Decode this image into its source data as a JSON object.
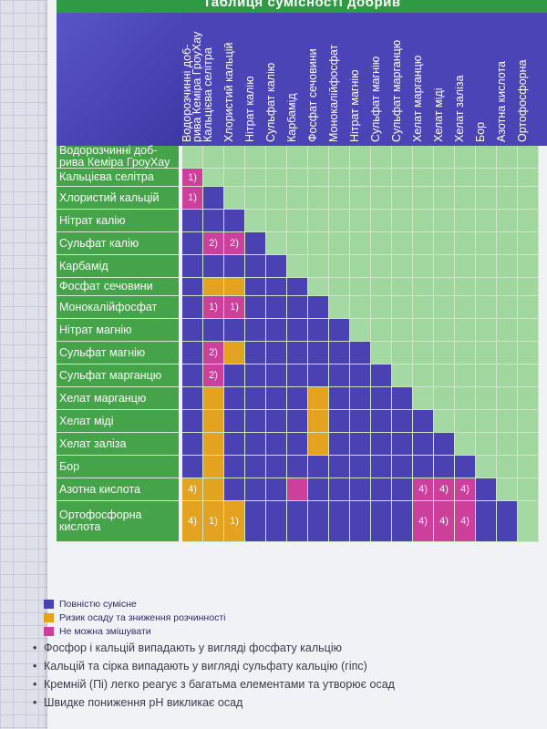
{
  "title": "Таблиця сумісності добрив",
  "colors": {
    "compatible": "#4a42b3",
    "risk": "#e3a320",
    "incompatible": "#cc3f9a",
    "upper": "#9fd79f",
    "diag_edge": "#a4d9a3",
    "row_label": "#45a349"
  },
  "columns": [
    "Водорозчинні доб-\nрива Кеміра ГроуХау",
    "Кальцієва селітра",
    "Хлористий кальцій",
    "Нітрат калію",
    "Сульфат калію",
    "Карбамід",
    "Фосфат сечовини",
    "Монокалійфосфат",
    "Нітрат магнію",
    "Сульфат магнію",
    "Сульфат марганцю",
    "Хелат марганцю",
    "Хелат міді",
    "Хелат заліза",
    "Бор",
    "Азотна кислота",
    "Ортофосфорна"
  ],
  "rows": [
    "Водорозчинні доб-\nрива Кеміра ГроуХау",
    "Кальцієва селітра",
    "Хлористий кальцій",
    "Нітрат калію",
    "Сульфат калію",
    "Карбамід",
    "Фосфат сечовини",
    "Монокалійфосфат",
    "Нітрат магнію",
    "Сульфат магнію",
    "Сульфат марганцю",
    "Хелат марганцю",
    "Хелат міді",
    "Хелат заліза",
    "Бор",
    "Азотна кислота",
    "Ортофосфорна\nкислота"
  ],
  "special_cells": [
    {
      "row": 1,
      "col": 0,
      "type": "incompatible",
      "text": "1)"
    },
    {
      "row": 2,
      "col": 0,
      "type": "incompatible",
      "text": "1)"
    },
    {
      "row": 4,
      "col": 1,
      "type": "incompatible",
      "text": "2)"
    },
    {
      "row": 4,
      "col": 2,
      "type": "incompatible",
      "text": "2)"
    },
    {
      "row": 6,
      "col": 1,
      "type": "risk",
      "text": ""
    },
    {
      "row": 6,
      "col": 2,
      "type": "risk",
      "text": ""
    },
    {
      "row": 7,
      "col": 1,
      "type": "incompatible",
      "text": "1)"
    },
    {
      "row": 7,
      "col": 2,
      "type": "incompatible",
      "text": "1)"
    },
    {
      "row": 9,
      "col": 1,
      "type": "incompatible",
      "text": "2)"
    },
    {
      "row": 9,
      "col": 2,
      "type": "risk",
      "text": ""
    },
    {
      "row": 10,
      "col": 1,
      "type": "incompatible",
      "text": "2)"
    },
    {
      "row": 11,
      "col": 1,
      "type": "risk",
      "text": ""
    },
    {
      "row": 11,
      "col": 6,
      "type": "risk",
      "text": ""
    },
    {
      "row": 12,
      "col": 1,
      "type": "risk",
      "text": ""
    },
    {
      "row": 12,
      "col": 6,
      "type": "risk",
      "text": ""
    },
    {
      "row": 13,
      "col": 1,
      "type": "risk",
      "text": ""
    },
    {
      "row": 13,
      "col": 6,
      "type": "risk",
      "text": ""
    },
    {
      "row": 14,
      "col": 1,
      "type": "risk",
      "text": ""
    },
    {
      "row": 15,
      "col": 0,
      "type": "risk",
      "text": "4)"
    },
    {
      "row": 15,
      "col": 1,
      "type": "risk",
      "text": ""
    },
    {
      "row": 15,
      "col": 5,
      "type": "incompatible",
      "text": ""
    },
    {
      "row": 15,
      "col": 11,
      "type": "incompatible",
      "text": "4)"
    },
    {
      "row": 15,
      "col": 12,
      "type": "incompatible",
      "text": "4)"
    },
    {
      "row": 15,
      "col": 13,
      "type": "incompatible",
      "text": "4)"
    },
    {
      "row": 16,
      "col": 0,
      "type": "risk",
      "text": "4)"
    },
    {
      "row": 16,
      "col": 1,
      "type": "risk",
      "text": "1)"
    },
    {
      "row": 16,
      "col": 2,
      "type": "risk",
      "text": "1)"
    },
    {
      "row": 16,
      "col": 11,
      "type": "incompatible",
      "text": "4)"
    },
    {
      "row": 16,
      "col": 12,
      "type": "incompatible",
      "text": "4)"
    },
    {
      "row": 16,
      "col": 13,
      "type": "incompatible",
      "text": "4)"
    }
  ],
  "legend": [
    {
      "type": "compatible",
      "label": "Повністю сумісне"
    },
    {
      "type": "risk",
      "label": "Ризик осаду та зниження розчинності"
    },
    {
      "type": "incompatible",
      "label": "Не можна змішувати"
    }
  ],
  "notes": [
    "Фосфор і кальцій випадають у вигляді фосфату кальцію",
    "Кальцій та сірка випадають у вигляді сульфату кальцію (гіпс)",
    "Кремній (Пі) легко реагує з багатьма елементами та утворює осад",
    "Швидке пониження pH викликає осад"
  ],
  "bullet": "•"
}
